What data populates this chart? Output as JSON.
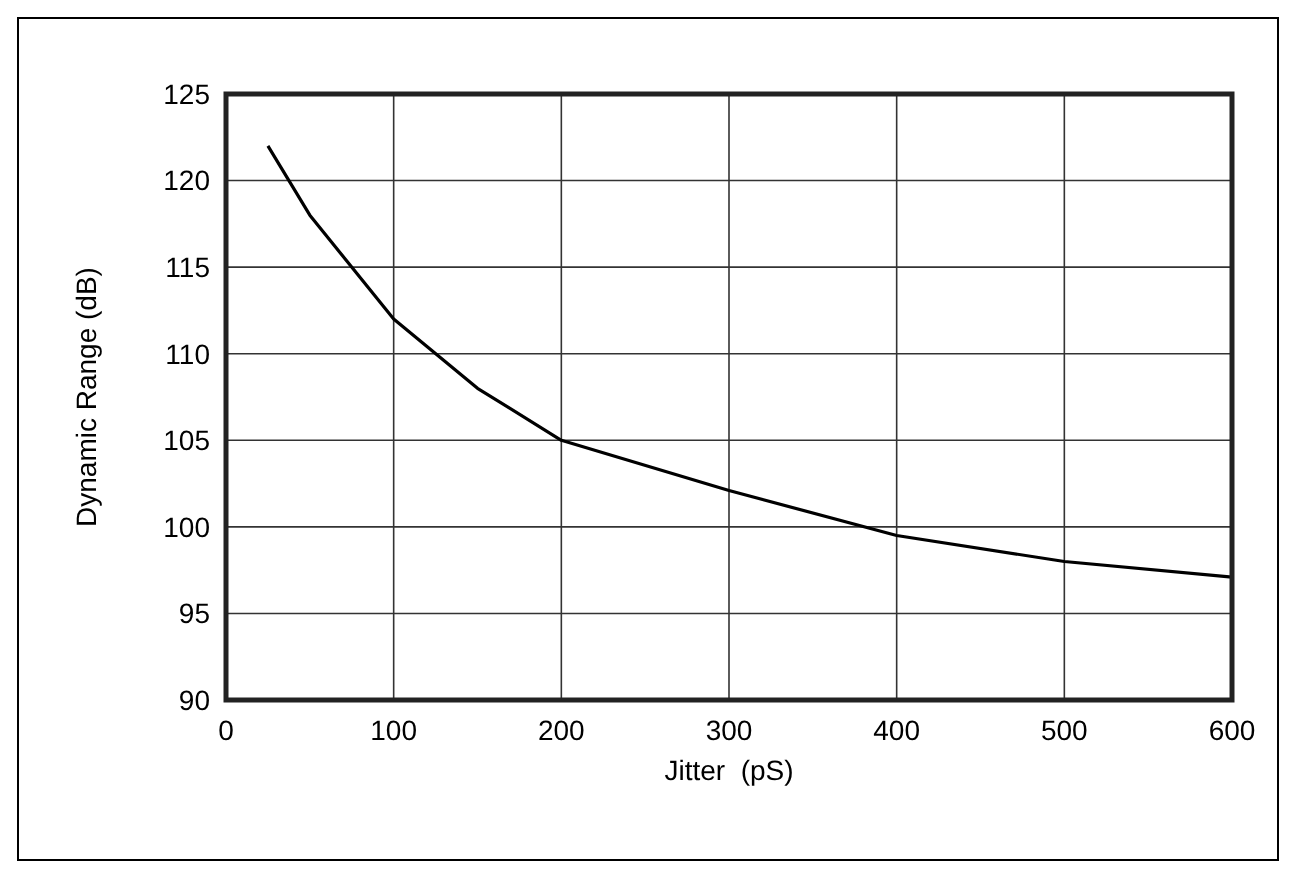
{
  "chart_data": {
    "type": "line",
    "xlabel": "Jitter  (pS)",
    "ylabel": "Dynamic Range (dB)",
    "x": [
      25,
      50,
      100,
      150,
      200,
      300,
      400,
      500,
      600
    ],
    "series": [
      {
        "color": "#000000",
        "values": [
          122,
          118,
          112,
          108,
          105,
          102.1,
          99.5,
          98,
          97.1
        ]
      }
    ],
    "xlim": [
      0,
      600
    ],
    "xticks": [
      0,
      100,
      200,
      300,
      400,
      500,
      600
    ],
    "ylim": [
      90,
      125
    ],
    "yticks": [
      90,
      95,
      100,
      105,
      110,
      115,
      120,
      125
    ],
    "grid": true,
    "marker": "none",
    "line_style": "solid"
  }
}
